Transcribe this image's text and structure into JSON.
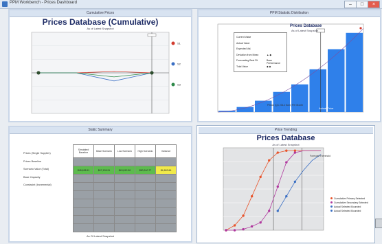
{
  "window": {
    "title": "PPM Workbench - Prices Dashboard",
    "controls": [
      "–",
      "□",
      "×"
    ]
  },
  "panels": [
    {
      "header": "Cumulative Prices"
    },
    {
      "header": "PPM Statistic Distribution"
    },
    {
      "header": "Static Summary"
    },
    {
      "header": "Price Trending"
    }
  ],
  "chart1": {
    "title": "Prices Database (Cumulative)",
    "subtitle": "As of Latest Snapshot"
  },
  "chart2": {
    "title": "Prices Database",
    "subtitle": "As of Latest Snapshot",
    "legend": [
      {
        "label": "Current Value",
        "marker": ""
      },
      {
        "label": "Actual Value",
        "marker": ""
      },
      {
        "label": "Expected Val.",
        "marker": ""
      },
      {
        "label": "Deviation from Mean",
        "marker": "▲ ◆"
      },
      {
        "label": "Forecasting Best Fit",
        "marker": "Base Performance"
      },
      {
        "label": "Total Value",
        "marker": "◆ ◆"
      }
    ],
    "xlabel": "Period (Q1 2014 Sum) Per Month",
    "callout": "Actual Price"
  },
  "table": {
    "columns": [
      "Simulated Baseline",
      "Base Scenario",
      "Low Scenario",
      "High Scenario",
      "Variance"
    ],
    "rows": [
      "Prices (Single Supplier)",
      "Prices Baseline",
      "Scenario Value (Total)",
      "Base Capacity",
      "Constraint (Incremental)"
    ],
    "highlight": [
      "$45,638.11",
      "$47,128.91",
      "$43,812.50",
      "$50,240.77",
      "$4,602.66"
    ],
    "footer": "As Of Latest Snapshot"
  },
  "chart4": {
    "title": "Prices Database",
    "subtitle": "As of Latest Snapshot",
    "legend": [
      "Cumulative Primary Selected",
      "Cumulative Secondary Selected",
      "Actual Selected Bounded",
      "Actual Selected Bounded"
    ],
    "annotation": "Forecast Threshold"
  },
  "chart_data": [
    {
      "type": "line",
      "title": "Prices Database (Cumulative)",
      "subtitle": "As of Latest Snapshot",
      "x": [
        0,
        1,
        2,
        3
      ],
      "series": [
        {
          "name": "S1",
          "color": "#d23b2e",
          "values": [
            0,
            0,
            0.1,
            0
          ]
        },
        {
          "name": "S2",
          "color": "#3a6fc4",
          "values": [
            0,
            0,
            -0.6,
            0
          ]
        },
        {
          "name": "S3",
          "color": "#2f8a4a",
          "values": [
            0,
            0,
            -0.3,
            0
          ]
        }
      ],
      "ylim": [
        -3,
        3
      ]
    },
    {
      "type": "bar",
      "title": "Prices Database",
      "subtitle": "As of Latest Snapshot",
      "categories": [
        "1",
        "2",
        "3",
        "4",
        "5",
        "6",
        "7",
        "8"
      ],
      "values": [
        1,
        4,
        9,
        16,
        22,
        34,
        50,
        63
      ],
      "ylim": [
        0,
        70
      ],
      "color": "#2f80ea"
    },
    {
      "type": "line",
      "title": "Prices Database",
      "subtitle": "As of Latest Snapshot",
      "x": [
        0,
        1,
        2,
        3,
        4,
        5,
        6,
        7,
        8,
        9,
        10,
        11
      ],
      "series": [
        {
          "name": "Cumulative Primary Selected",
          "color": "#e8532a",
          "values": [
            0,
            5,
            15,
            35,
            55,
            72,
            80,
            82,
            82,
            82,
            82,
            82
          ]
        },
        {
          "name": "Cumulative Secondary Selected",
          "color": "#b0389e",
          "values": [
            0,
            0,
            1,
            4,
            8,
            20,
            45,
            70,
            80,
            82,
            82,
            82
          ]
        },
        {
          "name": "Actual Selected Bounded",
          "color": "#3a6fc4",
          "values": [
            null,
            null,
            null,
            null,
            null,
            null,
            20,
            35,
            50,
            62,
            72,
            78
          ]
        }
      ],
      "ylim": [
        0,
        85
      ]
    }
  ]
}
